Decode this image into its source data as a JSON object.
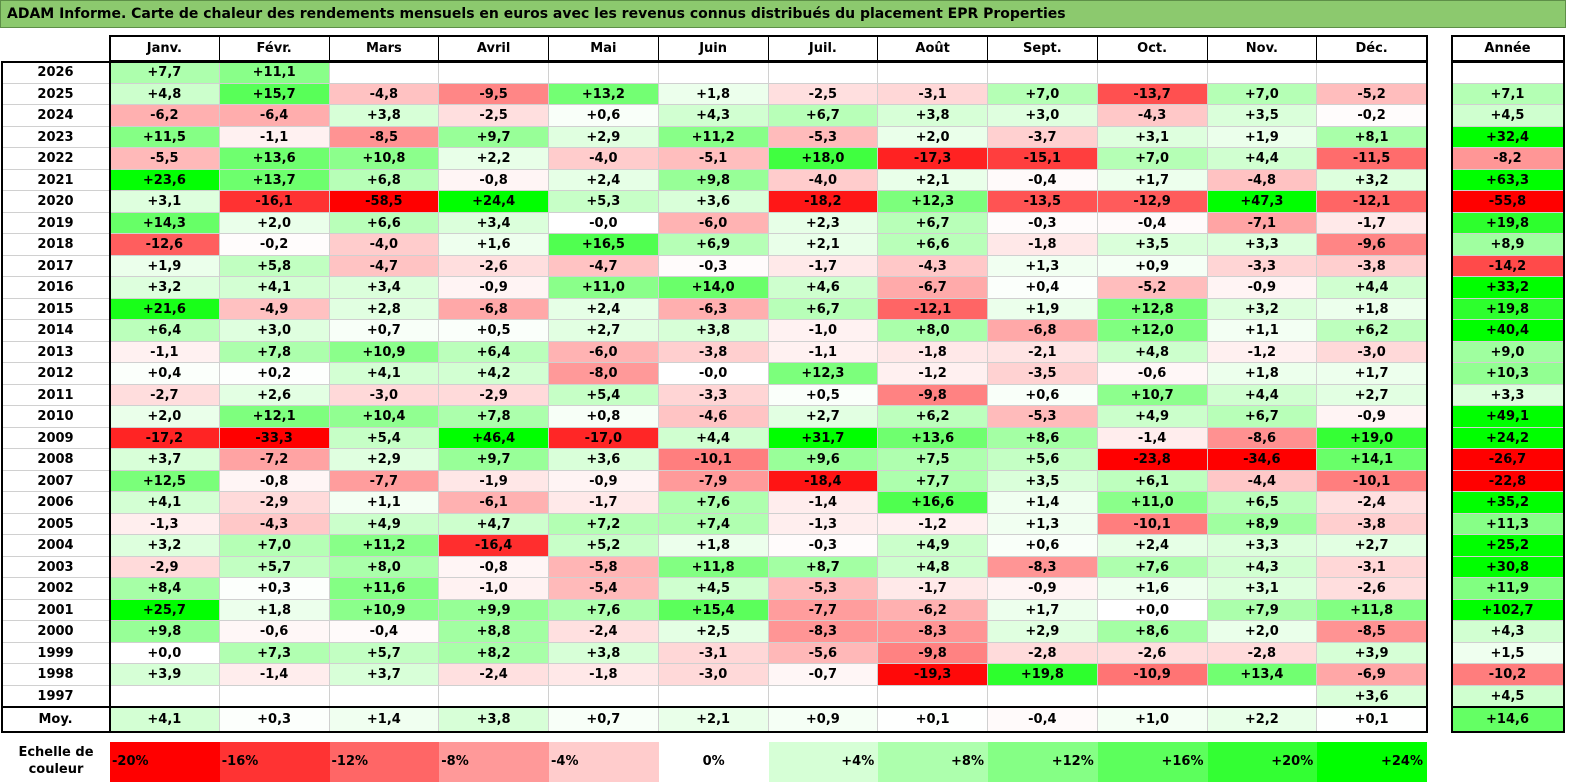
{
  "title": "ADAM Informe. Carte de chaleur des rendements mensuels en euros avec les revenus connus distribués du placement EPR Properties",
  "chart_data": {
    "type": "heatmap",
    "title": "ADAM Informe. Carte de chaleur des rendements mensuels en euros avec les revenus connus distribués du placement EPR Properties",
    "months": [
      "Janv.",
      "Févr.",
      "Mars",
      "Avril",
      "Mai",
      "Juin",
      "Juil.",
      "Août",
      "Sept.",
      "Oct.",
      "Nov.",
      "Déc."
    ],
    "year_header": "Année",
    "rows": [
      {
        "year": "2026",
        "months": [
          "+7,7",
          "+11,1",
          "",
          "",
          "",
          "",
          "",
          "",
          "",
          "",
          "",
          ""
        ],
        "annual": ""
      },
      {
        "year": "2025",
        "months": [
          "+4,8",
          "+15,7",
          "-4,8",
          "-9,5",
          "+13,2",
          "+1,8",
          "-2,5",
          "-3,1",
          "+7,0",
          "-13,7",
          "+7,0",
          "-5,2"
        ],
        "annual": "+7,1"
      },
      {
        "year": "2024",
        "months": [
          "-6,2",
          "-6,4",
          "+3,8",
          "-2,5",
          "+0,6",
          "+4,3",
          "+6,7",
          "+3,8",
          "+3,0",
          "-4,3",
          "+3,5",
          "-0,2"
        ],
        "annual": "+4,5"
      },
      {
        "year": "2023",
        "months": [
          "+11,5",
          "-1,1",
          "-8,5",
          "+9,7",
          "+2,9",
          "+11,2",
          "-5,3",
          "+2,0",
          "-3,7",
          "+3,1",
          "+1,9",
          "+8,1"
        ],
        "annual": "+32,4"
      },
      {
        "year": "2022",
        "months": [
          "-5,5",
          "+13,6",
          "+10,8",
          "+2,2",
          "-4,0",
          "-5,1",
          "+18,0",
          "-17,3",
          "-15,1",
          "+7,0",
          "+4,4",
          "-11,5"
        ],
        "annual": "-8,2"
      },
      {
        "year": "2021",
        "months": [
          "+23,6",
          "+13,7",
          "+6,8",
          "-0,8",
          "+2,4",
          "+9,8",
          "-4,0",
          "+2,1",
          "-0,4",
          "+1,7",
          "-4,8",
          "+3,2"
        ],
        "annual": "+63,3"
      },
      {
        "year": "2020",
        "months": [
          "+3,1",
          "-16,1",
          "-58,5",
          "+24,4",
          "+5,3",
          "+3,6",
          "-18,2",
          "+12,3",
          "-13,5",
          "-12,9",
          "+47,3",
          "-12,1"
        ],
        "annual": "-55,8"
      },
      {
        "year": "2019",
        "months": [
          "+14,3",
          "+2,0",
          "+6,6",
          "+3,4",
          "-0,0",
          "-6,0",
          "+2,3",
          "+6,7",
          "-0,3",
          "-0,4",
          "-7,1",
          "-1,7"
        ],
        "annual": "+19,8"
      },
      {
        "year": "2018",
        "months": [
          "-12,6",
          "-0,2",
          "-4,0",
          "+1,6",
          "+16,5",
          "+6,9",
          "+2,1",
          "+6,6",
          "-1,8",
          "+3,5",
          "+3,3",
          "-9,6"
        ],
        "annual": "+8,9"
      },
      {
        "year": "2017",
        "months": [
          "+1,9",
          "+5,8",
          "-4,7",
          "-2,6",
          "-4,7",
          "-0,3",
          "-1,7",
          "-4,3",
          "+1,3",
          "+0,9",
          "-3,3",
          "-3,8"
        ],
        "annual": "-14,2"
      },
      {
        "year": "2016",
        "months": [
          "+3,2",
          "+4,1",
          "+3,4",
          "-0,9",
          "+11,0",
          "+14,0",
          "+4,6",
          "-6,7",
          "+0,4",
          "-5,2",
          "-0,9",
          "+4,4"
        ],
        "annual": "+33,2"
      },
      {
        "year": "2015",
        "months": [
          "+21,6",
          "-4,9",
          "+2,8",
          "-6,8",
          "+2,4",
          "-6,3",
          "+6,7",
          "-12,1",
          "+1,9",
          "+12,8",
          "+3,2",
          "+1,8"
        ],
        "annual": "+19,8"
      },
      {
        "year": "2014",
        "months": [
          "+6,4",
          "+3,0",
          "+0,7",
          "+0,5",
          "+2,7",
          "+3,8",
          "-1,0",
          "+8,0",
          "-6,8",
          "+12,0",
          "+1,1",
          "+6,2"
        ],
        "annual": "+40,4"
      },
      {
        "year": "2013",
        "months": [
          "-1,1",
          "+7,8",
          "+10,9",
          "+6,4",
          "-6,0",
          "-3,8",
          "-1,1",
          "-1,8",
          "-2,1",
          "+4,8",
          "-1,2",
          "-3,0"
        ],
        "annual": "+9,0"
      },
      {
        "year": "2012",
        "months": [
          "+0,4",
          "+0,2",
          "+4,1",
          "+4,2",
          "-8,0",
          "-0,0",
          "+12,3",
          "-1,2",
          "-3,5",
          "-0,6",
          "+1,8",
          "+1,7"
        ],
        "annual": "+10,3"
      },
      {
        "year": "2011",
        "months": [
          "-2,7",
          "+2,6",
          "-3,0",
          "-2,9",
          "+5,4",
          "-3,3",
          "+0,5",
          "-9,8",
          "+0,6",
          "+10,7",
          "+4,4",
          "+2,7"
        ],
        "annual": "+3,3"
      },
      {
        "year": "2010",
        "months": [
          "+2,0",
          "+12,1",
          "+10,4",
          "+7,8",
          "+0,8",
          "-4,6",
          "+2,7",
          "+6,2",
          "-5,3",
          "+4,9",
          "+6,7",
          "-0,9"
        ],
        "annual": "+49,1"
      },
      {
        "year": "2009",
        "months": [
          "-17,2",
          "-33,3",
          "+5,4",
          "+46,4",
          "-17,0",
          "+4,4",
          "+31,7",
          "+13,6",
          "+8,6",
          "-1,4",
          "-8,6",
          "+19,0"
        ],
        "annual": "+24,2"
      },
      {
        "year": "2008",
        "months": [
          "+3,7",
          "-7,2",
          "+2,9",
          "+9,7",
          "+3,6",
          "-10,1",
          "+9,6",
          "+7,5",
          "+5,6",
          "-23,8",
          "-34,6",
          "+14,1"
        ],
        "annual": "-26,7"
      },
      {
        "year": "2007",
        "months": [
          "+12,5",
          "-0,8",
          "-7,7",
          "-1,9",
          "-0,9",
          "-7,9",
          "-18,4",
          "+7,7",
          "+3,5",
          "+6,1",
          "-4,4",
          "-10,1"
        ],
        "annual": "-22,8"
      },
      {
        "year": "2006",
        "months": [
          "+4,1",
          "-2,9",
          "+1,1",
          "-6,1",
          "-1,7",
          "+7,6",
          "-1,4",
          "+16,6",
          "+1,4",
          "+11,0",
          "+6,5",
          "-2,4"
        ],
        "annual": "+35,2"
      },
      {
        "year": "2005",
        "months": [
          "-1,3",
          "-4,3",
          "+4,9",
          "+4,7",
          "+7,2",
          "+7,4",
          "-1,3",
          "-1,2",
          "+1,3",
          "-10,1",
          "+8,9",
          "-3,8"
        ],
        "annual": "+11,3"
      },
      {
        "year": "2004",
        "months": [
          "+3,2",
          "+7,0",
          "+11,2",
          "-16,4",
          "+5,2",
          "+1,8",
          "-0,3",
          "+4,9",
          "+0,6",
          "+2,4",
          "+3,3",
          "+2,7"
        ],
        "annual": "+25,2"
      },
      {
        "year": "2003",
        "months": [
          "-2,9",
          "+5,7",
          "+8,0",
          "-0,8",
          "-5,8",
          "+11,8",
          "+8,7",
          "+4,8",
          "-8,3",
          "+7,6",
          "+4,3",
          "-3,1"
        ],
        "annual": "+30,8"
      },
      {
        "year": "2002",
        "months": [
          "+8,4",
          "+0,3",
          "+11,6",
          "-1,0",
          "-5,4",
          "+4,5",
          "-5,3",
          "-1,7",
          "-0,9",
          "+1,6",
          "+3,1",
          "-2,6"
        ],
        "annual": "+11,9"
      },
      {
        "year": "2001",
        "months": [
          "+25,7",
          "+1,8",
          "+10,9",
          "+9,9",
          "+7,6",
          "+15,4",
          "-7,7",
          "-6,2",
          "+1,7",
          "+0,0",
          "+7,9",
          "+11,8"
        ],
        "annual": "+102,7"
      },
      {
        "year": "2000",
        "months": [
          "+9,8",
          "-0,6",
          "-0,4",
          "+8,8",
          "-2,4",
          "+2,5",
          "-8,3",
          "-8,3",
          "+2,9",
          "+8,6",
          "+2,0",
          "-8,5"
        ],
        "annual": "+4,3"
      },
      {
        "year": "1999",
        "months": [
          "+0,0",
          "+7,3",
          "+5,7",
          "+8,2",
          "+3,8",
          "-3,1",
          "-5,6",
          "-9,8",
          "-2,8",
          "-2,6",
          "-2,8",
          "+3,9"
        ],
        "annual": "+1,5"
      },
      {
        "year": "1998",
        "months": [
          "+3,9",
          "-1,4",
          "+3,7",
          "-2,4",
          "-1,8",
          "-3,0",
          "-0,7",
          "-19,3",
          "+19,8",
          "-10,9",
          "+13,4",
          "-6,9"
        ],
        "annual": "-10,2"
      },
      {
        "year": "1997",
        "months": [
          "",
          "",
          "",
          "",
          "",
          "",
          "",
          "",
          "",
          "",
          "",
          "+3,6"
        ],
        "annual": "+4,5"
      }
    ],
    "average": {
      "label": "Moy.",
      "months": [
        "+4,1",
        "+0,3",
        "+1,4",
        "+3,8",
        "+0,7",
        "+2,1",
        "+0,9",
        "+0,1",
        "-0,4",
        "+1,0",
        "+2,2",
        "+0,1"
      ],
      "annual": "+14,6"
    },
    "scale": {
      "label": "Echelle de couleur",
      "steps": [
        {
          "label": "-20%",
          "value": -20,
          "color": "#ff0000"
        },
        {
          "label": "-16%",
          "value": -16,
          "color": "#ff3333"
        },
        {
          "label": "-12%",
          "value": -12,
          "color": "#ff6666"
        },
        {
          "label": "-8%",
          "value": -8,
          "color": "#ff9999"
        },
        {
          "label": "-4%",
          "value": -4,
          "color": "#ffcccc"
        },
        {
          "label": "0%",
          "value": 0,
          "color": "#ffffff"
        },
        {
          "label": "+4%",
          "value": 4,
          "color": "#d6ffd6"
        },
        {
          "label": "+8%",
          "value": 8,
          "color": "#adffad"
        },
        {
          "label": "+12%",
          "value": 12,
          "color": "#85ff85"
        },
        {
          "label": "+16%",
          "value": 16,
          "color": "#5cff5c"
        },
        {
          "label": "+20%",
          "value": 20,
          "color": "#33ff33"
        },
        {
          "label": "+24%",
          "value": 24,
          "color": "#00ff00"
        }
      ]
    }
  }
}
